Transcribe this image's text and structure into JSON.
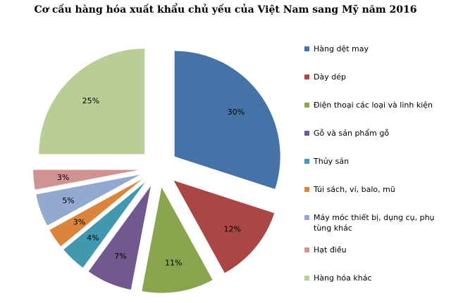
{
  "chart_data": {
    "type": "pie",
    "title": "Cơ cấu hàng hóa xuất khẩu chủ yếu của Việt Nam sang Mỹ  năm 2016",
    "legend_position": "right",
    "slices": [
      {
        "name": "Hàng dệt may",
        "value": 30,
        "label": "30%",
        "color": "#4572A7"
      },
      {
        "name": "Dày dép",
        "value": 12,
        "label": "12%",
        "color": "#AA4643"
      },
      {
        "name": "Điện thoại các loại và linh kiện",
        "value": 11,
        "label": "11%",
        "color": "#89A54E"
      },
      {
        "name": "Gỗ và sản phẩm gỗ",
        "value": 7,
        "label": "7%",
        "color": "#71588F"
      },
      {
        "name": "Thủy sản",
        "value": 4,
        "label": "4%",
        "color": "#4198AF"
      },
      {
        "name": "Túi sách, ví, balo, mũ",
        "value": 3,
        "label": "3%",
        "color": "#DB843D"
      },
      {
        "name": "Máy móc thiết bị, dụng cụ, phụ tùng khác",
        "value": 5,
        "label": "5%",
        "color": "#93A9CF"
      },
      {
        "name": "Hạt điều",
        "value": 3,
        "label": "3%",
        "color": "#D19392"
      },
      {
        "name": "Hàng hóa khác",
        "value": 25,
        "label": "25%",
        "color": "#B9CD96"
      }
    ]
  }
}
